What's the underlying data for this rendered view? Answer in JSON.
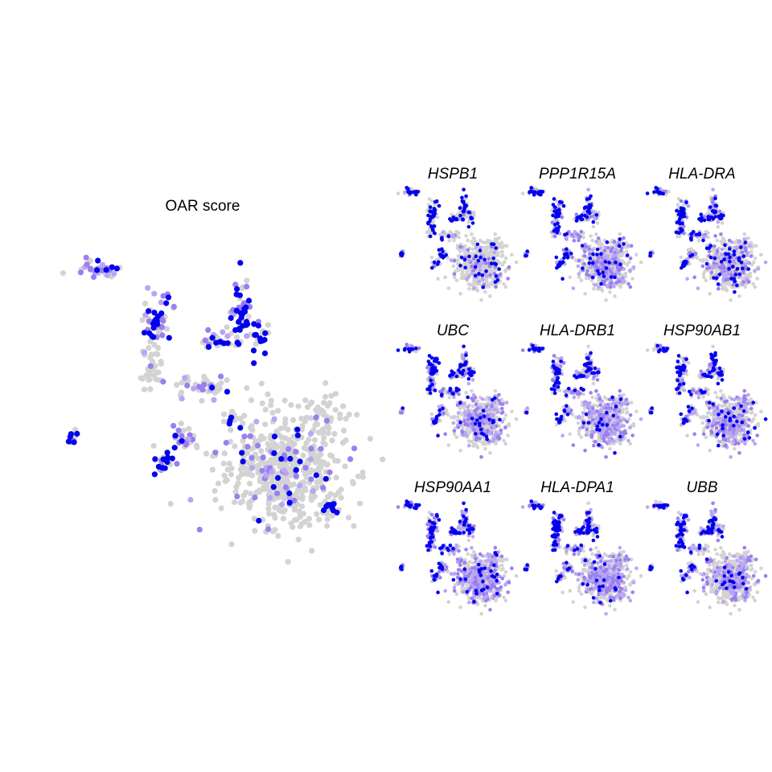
{
  "colors": {
    "low": "#d3d3d3",
    "mid": "#9b7ff0",
    "high": "#0000ee"
  },
  "chart_data": [
    {
      "type": "scatter",
      "title": "OAR score",
      "description_of_encoding": "UMAP embedding, point color = OAR score (grey low to blue high); no axes shown",
      "axes_visible": false
    },
    {
      "type": "scatter",
      "title": "HSPB1",
      "axes_visible": false
    },
    {
      "type": "scatter",
      "title": "PPP1R15A",
      "axes_visible": false
    },
    {
      "type": "scatter",
      "title": "HLA-DRA",
      "axes_visible": false
    },
    {
      "type": "scatter",
      "title": "UBC",
      "axes_visible": false
    },
    {
      "type": "scatter",
      "title": "HLA-DRB1",
      "axes_visible": false
    },
    {
      "type": "scatter",
      "title": "HSP90AB1",
      "axes_visible": false
    },
    {
      "type": "scatter",
      "title": "HSP90AA1",
      "axes_visible": false
    },
    {
      "type": "scatter",
      "title": "HLA-DPA1",
      "axes_visible": false
    },
    {
      "type": "scatter",
      "title": "UBB",
      "axes_visible": false
    }
  ]
}
